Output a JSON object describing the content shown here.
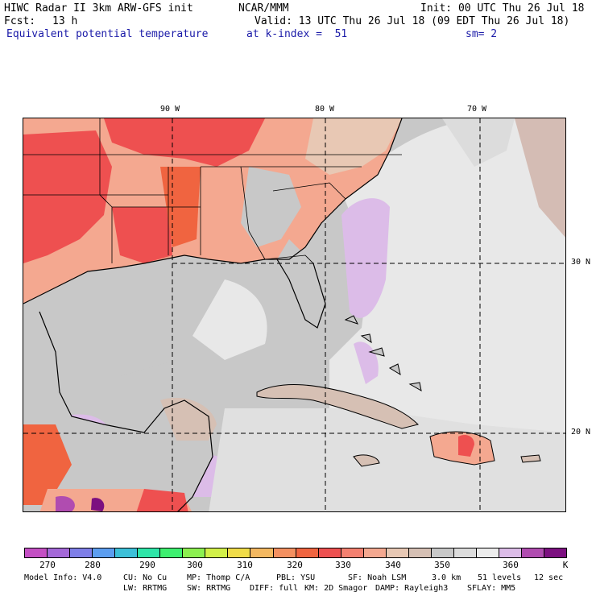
{
  "header": {
    "model_title": "HIWC Radar II 3km ARW-GFS init",
    "org": "NCAR/MMM",
    "init": "Init: 00 UTC Thu 26 Jul 18",
    "fcst_label": "Fcst:",
    "fcst_value": "13 h",
    "valid": "Valid: 13 UTC Thu 26 Jul 18 (09 EDT Thu 26 Jul 18)",
    "field": "Equivalent potential temperature",
    "level": "at k-index =  51",
    "smooth": "sm= 2"
  },
  "map": {
    "lon_labels": [
      "90 W",
      "80 W",
      "70 W"
    ],
    "lat_labels": [
      "30 N",
      "20 N"
    ]
  },
  "colorbar": {
    "unit": "K",
    "labels": [
      "270",
      "280",
      "290",
      "300",
      "310",
      "320",
      "330",
      "340",
      "350",
      "360"
    ],
    "colors": [
      "#c44fc4",
      "#a468d8",
      "#7e7ee8",
      "#5c9ef0",
      "#3cc0d8",
      "#2ee6a8",
      "#3ef070",
      "#8cf050",
      "#d2f048",
      "#f0dc48",
      "#f4b860",
      "#f49060",
      "#f06440",
      "#ee5050",
      "#f48070",
      "#f4a890",
      "#e8c8b4",
      "#d6c0b4",
      "#c8c8c8",
      "#dcdcdc",
      "#ececec",
      "#dcbce8",
      "#b04cb0",
      "#7c1080"
    ]
  },
  "footer": {
    "line1": [
      "Model Info: V4.0",
      "CU: No Cu",
      "MP: Thomp C/A",
      "PBL: YSU",
      "SF: Noah LSM",
      "3.0 km",
      "51 levels",
      "12 sec"
    ],
    "line2": [
      "LW: RRTMG",
      "SW: RRTMG",
      "DIFF: full",
      "KM: 2D Smagor",
      "DAMP: Rayleigh3",
      "SFLAY: MM5"
    ]
  }
}
